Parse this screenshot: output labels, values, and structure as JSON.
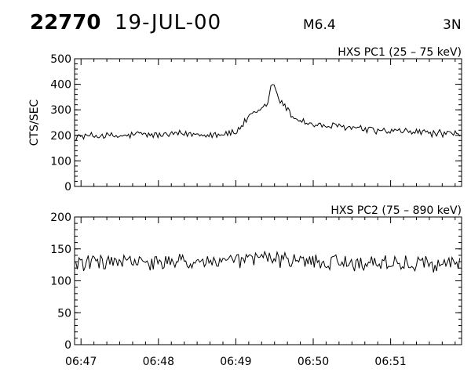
{
  "header": {
    "event_number": "22770",
    "date": "19-JUL-00",
    "flare_class": "M6.4",
    "location": "3N"
  },
  "chart_data": [
    {
      "type": "line",
      "title": "HXS PC1 (25 – 75 keV)",
      "ylabel": "CTS/SEC",
      "xlabel": "",
      "ylim": [
        0,
        500
      ],
      "yticks": [
        0,
        100,
        200,
        300,
        400,
        500
      ],
      "xticks": [
        "06:47",
        "06:48",
        "06:49",
        "06:50",
        "06:51"
      ],
      "xlim": [
        "06:46:55",
        "06:51:55"
      ],
      "grid": false,
      "series": [
        {
          "x": [
            "06:47:00",
            "06:47:15",
            "06:47:30",
            "06:47:45",
            "06:48:00",
            "06:48:15",
            "06:48:30",
            "06:48:45",
            "06:49:00",
            "06:49:10",
            "06:49:20",
            "06:49:25",
            "06:49:28",
            "06:49:35",
            "06:49:45",
            "06:50:00",
            "06:50:15",
            "06:50:30",
            "06:50:45",
            "06:51:00",
            "06:51:15",
            "06:51:30",
            "06:51:45"
          ],
          "values": [
            195,
            200,
            195,
            205,
            200,
            205,
            205,
            205,
            210,
            270,
            300,
            330,
            410,
            330,
            270,
            240,
            235,
            230,
            220,
            215,
            215,
            210,
            205
          ]
        }
      ]
    },
    {
      "type": "line",
      "title": "HXS PC2 (75 – 890 keV)",
      "ylabel": "",
      "xlabel": "",
      "ylim": [
        0,
        200
      ],
      "yticks": [
        0,
        50,
        100,
        150,
        200
      ],
      "xticks": [
        "06:47",
        "06:48",
        "06:49",
        "06:50",
        "06:51"
      ],
      "xlim": [
        "06:46:55",
        "06:51:55"
      ],
      "grid": false,
      "series": [
        {
          "x": [
            "06:47:00",
            "06:47:30",
            "06:48:00",
            "06:48:30",
            "06:49:00",
            "06:49:15",
            "06:49:22",
            "06:49:30",
            "06:50:00",
            "06:50:30",
            "06:51:00",
            "06:51:30",
            "06:51:50"
          ],
          "values": [
            128,
            130,
            127,
            130,
            130,
            135,
            140,
            132,
            130,
            128,
            128,
            127,
            128
          ]
        }
      ]
    }
  ]
}
